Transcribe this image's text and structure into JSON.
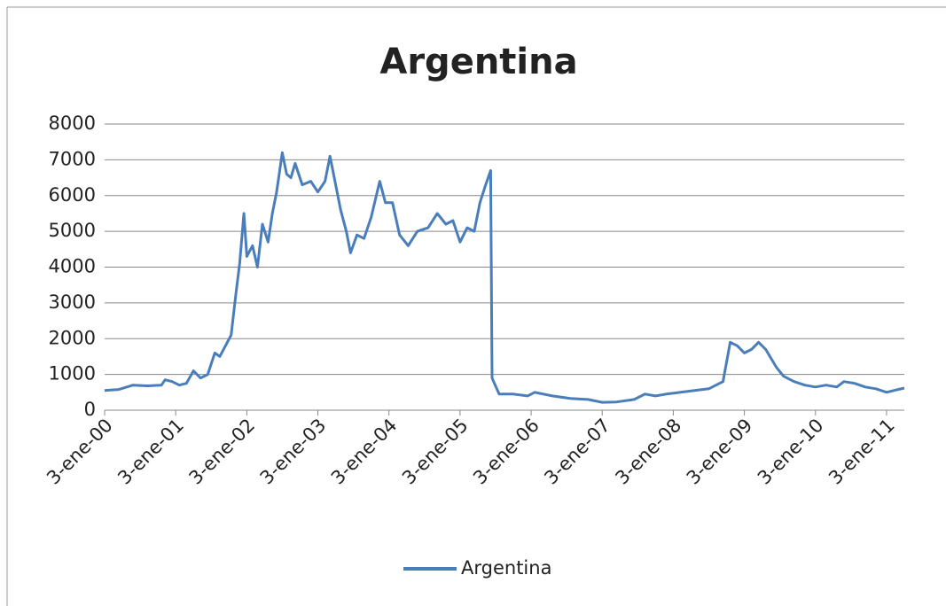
{
  "chart_data": {
    "type": "line",
    "title": "Argentina",
    "x": [
      2000.0,
      2000.2,
      2000.4,
      2000.6,
      2000.8,
      2000.85,
      2000.95,
      2001.05,
      2001.15,
      2001.25,
      2001.35,
      2001.45,
      2001.55,
      2001.62,
      2001.7,
      2001.78,
      2001.85,
      2001.9,
      2001.96,
      2002.0,
      2002.08,
      2002.15,
      2002.22,
      2002.3,
      2002.36,
      2002.42,
      2002.5,
      2002.56,
      2002.62,
      2002.68,
      2002.78,
      2002.9,
      2003.0,
      2003.1,
      2003.17,
      2003.25,
      2003.32,
      2003.4,
      2003.46,
      2003.55,
      2003.65,
      2003.75,
      2003.87,
      2003.95,
      2004.05,
      2004.15,
      2004.27,
      2004.4,
      2004.55,
      2004.68,
      2004.8,
      2004.9,
      2005.0,
      2005.1,
      2005.2,
      2005.28,
      2005.36,
      2005.43,
      2005.45,
      2005.55,
      2005.75,
      2005.95,
      2006.05,
      2006.3,
      2006.55,
      2006.8,
      2007.0,
      2007.2,
      2007.45,
      2007.6,
      2007.75,
      2007.9,
      2008.1,
      2008.3,
      2008.5,
      2008.7,
      2008.8,
      2008.9,
      2009.0,
      2009.1,
      2009.2,
      2009.3,
      2009.45,
      2009.55,
      2009.7,
      2009.85,
      2010.0,
      2010.15,
      2010.3,
      2010.4,
      2010.55,
      2010.7,
      2010.85,
      2011.0,
      2011.1,
      2011.25
    ],
    "series": [
      {
        "name": "Argentina",
        "color": "#4a7ebb",
        "values": [
          550,
          580,
          700,
          680,
          700,
          850,
          800,
          700,
          750,
          1100,
          900,
          1000,
          1600,
          1500,
          1800,
          2100,
          3300,
          4100,
          5500,
          4300,
          4600,
          4000,
          5200,
          4700,
          5500,
          6100,
          7200,
          6600,
          6500,
          6900,
          6300,
          6400,
          6100,
          6400,
          7100,
          6300,
          5600,
          5000,
          4400,
          4900,
          4800,
          5400,
          6400,
          5800,
          5800,
          4900,
          4600,
          5000,
          5100,
          5500,
          5200,
          5300,
          4700,
          5100,
          5000,
          5800,
          6300,
          6700,
          900,
          450,
          450,
          400,
          500,
          400,
          330,
          300,
          220,
          230,
          300,
          450,
          400,
          450,
          500,
          550,
          600,
          800,
          1900,
          1800,
          1600,
          1700,
          1900,
          1700,
          1200,
          950,
          800,
          700,
          650,
          700,
          650,
          800,
          750,
          650,
          600,
          500,
          550,
          620
        ]
      }
    ],
    "xlim": [
      2000,
      2011.25
    ],
    "xticks": [
      {
        "value": 2000,
        "label": "3-ene-00"
      },
      {
        "value": 2001,
        "label": "3-ene-01"
      },
      {
        "value": 2002,
        "label": "3-ene-02"
      },
      {
        "value": 2003,
        "label": "3-ene-03"
      },
      {
        "value": 2004,
        "label": "3-ene-04"
      },
      {
        "value": 2005,
        "label": "3-ene-05"
      },
      {
        "value": 2006,
        "label": "3-ene-06"
      },
      {
        "value": 2007,
        "label": "3-ene-07"
      },
      {
        "value": 2008,
        "label": "3-ene-08"
      },
      {
        "value": 2009,
        "label": "3-ene-09"
      },
      {
        "value": 2010,
        "label": "3-ene-10"
      },
      {
        "value": 2011,
        "label": "3-ene-11"
      }
    ],
    "ylim": [
      0,
      8000
    ],
    "yticks": [
      0,
      1000,
      2000,
      3000,
      4000,
      5000,
      6000,
      7000,
      8000
    ],
    "grid": true,
    "legend": "bottom"
  }
}
